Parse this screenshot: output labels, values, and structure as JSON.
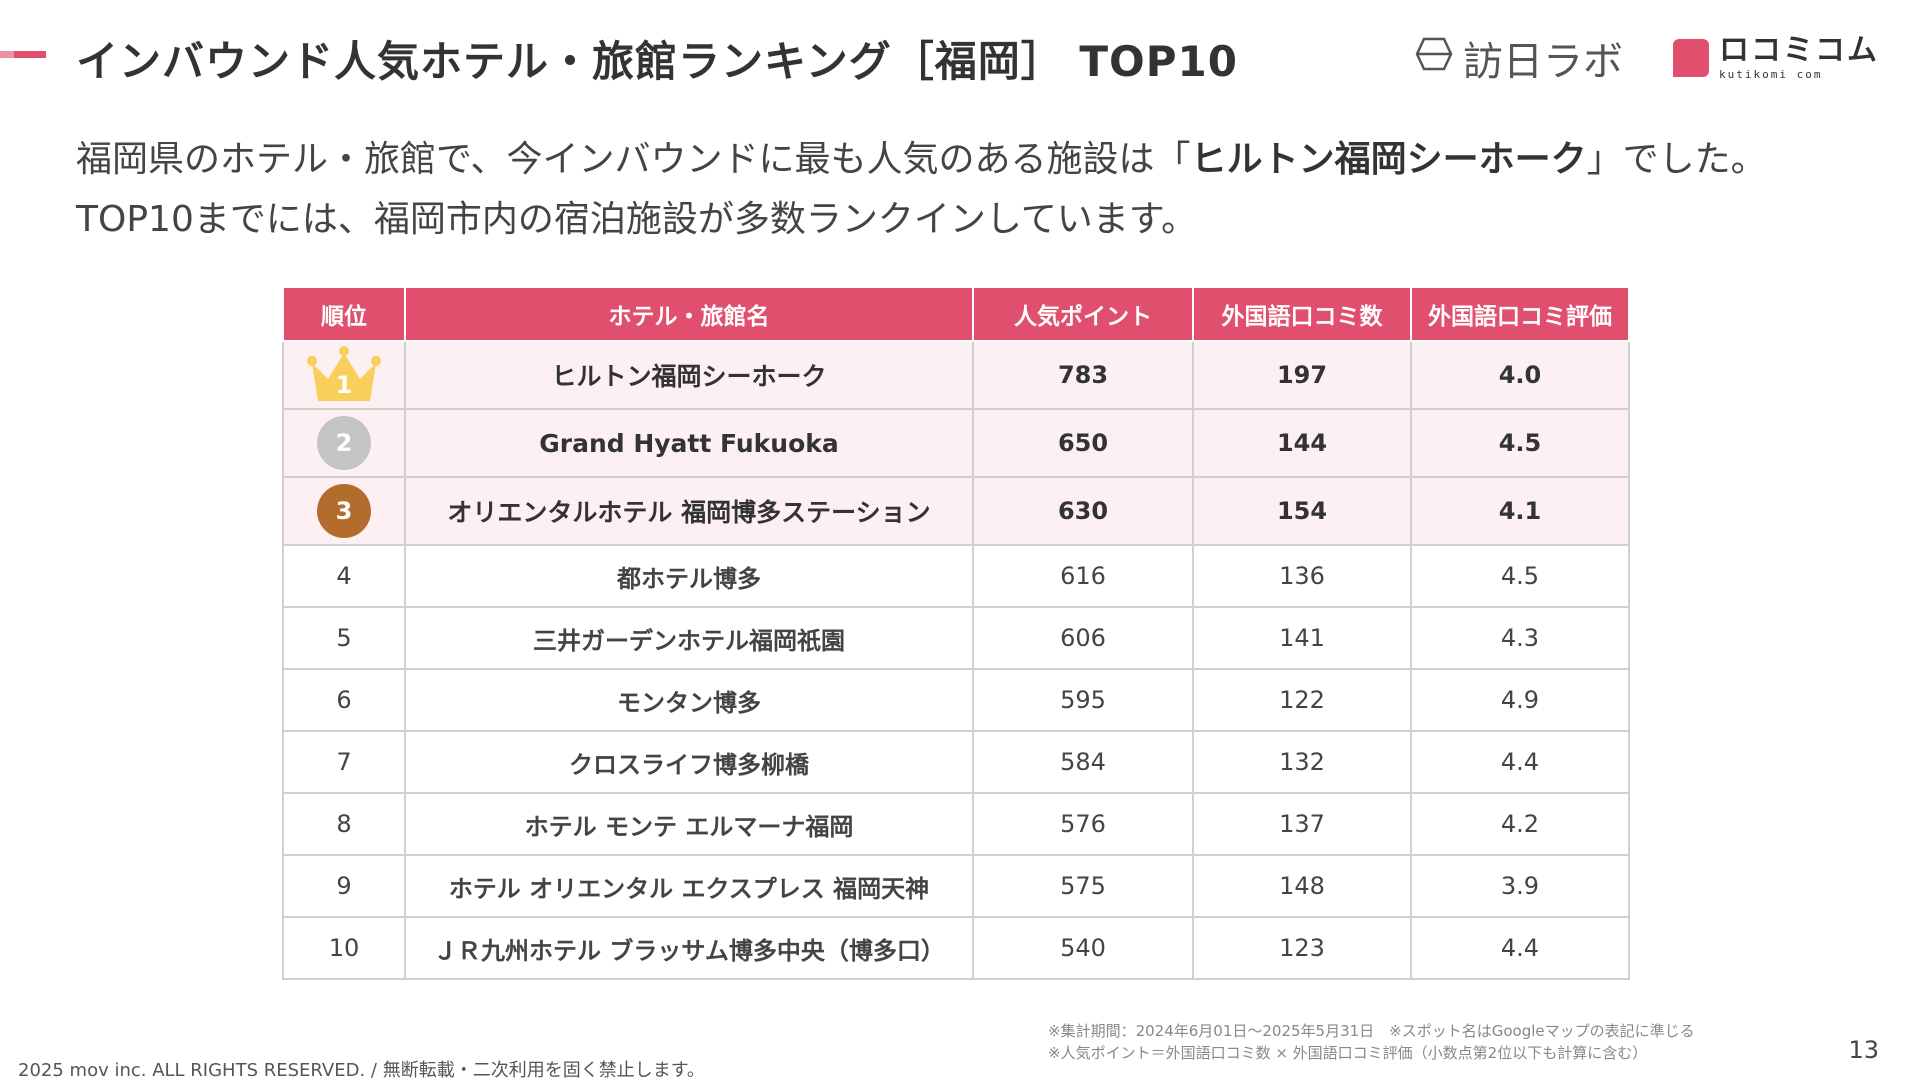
{
  "title": "インバウンド人気ホテル・旅館ランキング［福岡］ TOP10",
  "logos": {
    "houlab": "訪日ラボ",
    "kuchikomi_main": "ロコミコム",
    "kuchikomi_sub": "kutikomi com"
  },
  "lead": {
    "line1_before": "福岡県のホテル・旅館で、今インバウンドに最も人気のある施設は「",
    "line1_highlight": "ヒルトン福岡シーホーク",
    "line1_after": "」でした。",
    "line2": "TOP10までには、福岡市内の宿泊施設が多数ランクインしています。"
  },
  "table": {
    "headers": [
      "順位",
      "ホテル・旅館名",
      "人気ポイント",
      "外国語口コミ数",
      "外国語口コミ評価"
    ],
    "rows": [
      {
        "rank": "1",
        "name": "ヒルトン福岡シーホーク",
        "points": "783",
        "reviews": "197",
        "rating": "4.0"
      },
      {
        "rank": "2",
        "name": "Grand Hyatt Fukuoka",
        "points": "650",
        "reviews": "144",
        "rating": "4.5"
      },
      {
        "rank": "3",
        "name": "オリエンタルホテル 福岡博多ステーション",
        "points": "630",
        "reviews": "154",
        "rating": "4.1"
      },
      {
        "rank": "4",
        "name": "都ホテル博多",
        "points": "616",
        "reviews": "136",
        "rating": "4.5"
      },
      {
        "rank": "5",
        "name": "三井ガーデンホテル福岡祇園",
        "points": "606",
        "reviews": "141",
        "rating": "4.3"
      },
      {
        "rank": "6",
        "name": "モンタン博多",
        "points": "595",
        "reviews": "122",
        "rating": "4.9"
      },
      {
        "rank": "7",
        "name": "クロスライフ博多柳橋",
        "points": "584",
        "reviews": "132",
        "rating": "4.4"
      },
      {
        "rank": "8",
        "name": "ホテル モンテ エルマーナ福岡",
        "points": "576",
        "reviews": "137",
        "rating": "4.2"
      },
      {
        "rank": "9",
        "name": "ホテル オリエンタル エクスプレス 福岡天神",
        "points": "575",
        "reviews": "148",
        "rating": "3.9"
      },
      {
        "rank": "10",
        "name": "ＪＲ九州ホテル ブラッサム博多中央（博多口）",
        "points": "540",
        "reviews": "123",
        "rating": "4.4"
      }
    ]
  },
  "footnotes": {
    "line1": "※集計期間：2024年6月01日〜2025年5月31日　※スポット名はGoogleマップの表記に準じる",
    "line2": "※人気ポイント＝外国語口コミ数 × 外国語口コミ評価（小数点第2位以下も計算に含む）"
  },
  "copyright": "2025 mov inc. ALL RIGHTS RESERVED. / 無断転載・二次利用を固く禁止します。",
  "page_number": "13",
  "colors": {
    "accent": "#e0506e",
    "top3_row_bg": "#fdf0f3",
    "gold": "#f7cf5a",
    "silver": "#c4c4c4",
    "bronze": "#b26d2d"
  }
}
